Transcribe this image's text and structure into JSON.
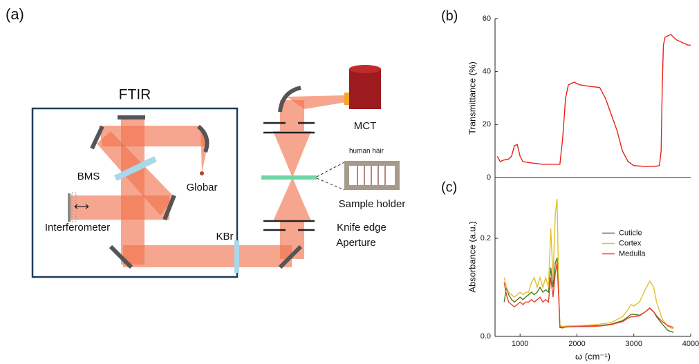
{
  "diagram": {
    "label": "(a)",
    "box_title": "FTIR",
    "bms": "BMS",
    "globar": "Globar",
    "interferometer": "Interferometer",
    "kbr": "KBr",
    "mct": "MCT",
    "hair": "human hair",
    "sample_holder": "Sample holder",
    "knife_edge": "Knife edge",
    "aperture": "Aperture"
  },
  "chart_data": [
    {
      "type": "line",
      "label": "(b)",
      "ylabel": "Transmittance (%)",
      "color": "#e8201c",
      "xlim": [
        560,
        4000
      ],
      "ylim": [
        0,
        60
      ],
      "yticks": [
        0,
        20,
        40,
        60
      ],
      "x": [
        600,
        650,
        700,
        800,
        850,
        900,
        950,
        1000,
        1050,
        1200,
        1400,
        1600,
        1700,
        1750,
        1800,
        1850,
        1950,
        2050,
        2200,
        2400,
        2500,
        2600,
        2700,
        2800,
        2900,
        3000,
        3200,
        3400,
        3450,
        3480,
        3500,
        3520,
        3550,
        3650,
        3750,
        3850,
        3950,
        4000
      ],
      "values": [
        8,
        6,
        6.5,
        7,
        8,
        12,
        12.5,
        8,
        6,
        5.5,
        5,
        5,
        5,
        15,
        30,
        35,
        36,
        35,
        34.5,
        34,
        30,
        24,
        18,
        10,
        6,
        4.5,
        4.2,
        4.3,
        4.5,
        10,
        35,
        50,
        53,
        54,
        52,
        51,
        50,
        50
      ]
    },
    {
      "type": "line",
      "label": "(c)",
      "ylabel": "Absorbance (a.u.)",
      "xlabel": "ω (cm⁻¹)",
      "xlim": [
        560,
        4000
      ],
      "xticks": [
        1000,
        2000,
        3000,
        4000
      ],
      "ylim": [
        0,
        0.324
      ],
      "yticks": [
        {
          "value": 0,
          "label": "0.0"
        },
        0.2
      ],
      "legend": "center right",
      "x": [
        720,
        760,
        800,
        850,
        900,
        950,
        1000,
        1050,
        1100,
        1150,
        1200,
        1250,
        1300,
        1350,
        1400,
        1450,
        1500,
        1540,
        1580,
        1620,
        1650,
        1680,
        1700,
        1750,
        1800,
        2000,
        2200,
        2400,
        2600,
        2800,
        2900,
        2950,
        3000,
        3100,
        3200,
        3280,
        3350,
        3400,
        3500,
        3600,
        3700
      ],
      "series": [
        {
          "name": "Cuticle",
          "color": "#4f7a1f",
          "values": [
            0.07,
            0.1,
            0.085,
            0.075,
            0.07,
            0.075,
            0.08,
            0.075,
            0.08,
            0.085,
            0.09,
            0.085,
            0.09,
            0.1,
            0.09,
            0.095,
            0.09,
            0.14,
            0.1,
            0.15,
            0.16,
            0.09,
            0.02,
            0.018,
            0.02,
            0.021,
            0.021,
            0.022,
            0.025,
            0.032,
            0.04,
            0.045,
            0.045,
            0.043,
            0.05,
            0.057,
            0.05,
            0.04,
            0.025,
            0.012,
            0.008
          ]
        },
        {
          "name": "Cortex",
          "color": "#e2c02a",
          "values": [
            0.12,
            0.1,
            0.09,
            0.085,
            0.08,
            0.085,
            0.09,
            0.085,
            0.09,
            0.09,
            0.11,
            0.12,
            0.1,
            0.12,
            0.1,
            0.12,
            0.1,
            0.22,
            0.12,
            0.25,
            0.28,
            0.1,
            0.022,
            0.02,
            0.021,
            0.022,
            0.023,
            0.025,
            0.028,
            0.04,
            0.055,
            0.065,
            0.062,
            0.07,
            0.095,
            0.113,
            0.1,
            0.07,
            0.035,
            0.02,
            0.015
          ]
        },
        {
          "name": "Medulla",
          "color": "#e8402e",
          "values": [
            0.11,
            0.085,
            0.07,
            0.065,
            0.06,
            0.065,
            0.07,
            0.065,
            0.07,
            0.07,
            0.075,
            0.07,
            0.075,
            0.08,
            0.07,
            0.075,
            0.07,
            0.12,
            0.08,
            0.13,
            0.15,
            0.08,
            0.018,
            0.017,
            0.019,
            0.02,
            0.02,
            0.021,
            0.024,
            0.03,
            0.037,
            0.04,
            0.04,
            0.042,
            0.05,
            0.058,
            0.05,
            0.042,
            0.03,
            0.022,
            0.018
          ]
        }
      ]
    }
  ]
}
